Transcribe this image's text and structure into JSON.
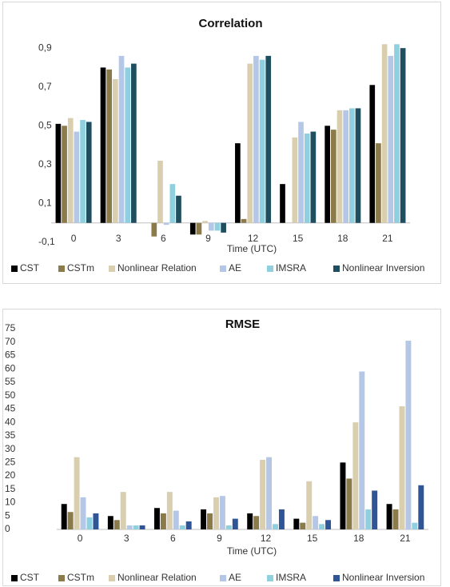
{
  "chart_data": [
    {
      "type": "bar",
      "title": "Correlation",
      "x_label": "Time (UTC)",
      "categories": [
        "0",
        "3",
        "6",
        "9",
        "12",
        "15",
        "18",
        "21"
      ],
      "ylim": [
        -0.1,
        0.95
      ],
      "yticks": [
        {
          "value": -0.1,
          "label": "-0,1"
        },
        {
          "value": 0.1,
          "label": "0,1"
        },
        {
          "value": 0.3,
          "label": "0,3"
        },
        {
          "value": 0.5,
          "label": "0,5"
        },
        {
          "value": 0.7,
          "label": "0,7"
        },
        {
          "value": 0.9,
          "label": "0,9"
        }
      ],
      "legend": "bottom",
      "series": [
        {
          "name": "CST",
          "color": "#000000",
          "values": [
            0.51,
            0.8,
            0,
            -0.06,
            0.41,
            0.2,
            0.5,
            0.71
          ]
        },
        {
          "name": "CSTm",
          "color": "#8b7a4a",
          "values": [
            0.5,
            0.79,
            -0.07,
            -0.06,
            0.02,
            0,
            0.48,
            0.41
          ]
        },
        {
          "name": "Nonlinear Relation",
          "color": "#d9cfae",
          "values": [
            0.54,
            0.74,
            0.32,
            0.01,
            0.82,
            0.44,
            0.58,
            0.92
          ]
        },
        {
          "name": "AE",
          "color": "#b4c7e7",
          "values": [
            0.47,
            0.86,
            -0.01,
            -0.04,
            0.86,
            0.52,
            0.58,
            0.86
          ]
        },
        {
          "name": "IMSRA",
          "color": "#8fd0e0",
          "values": [
            0.53,
            0.8,
            0.2,
            -0.04,
            0.84,
            0.46,
            0.59,
            0.92
          ]
        },
        {
          "name": "Nonlinear Inversion",
          "color": "#1f4e5f",
          "values": [
            0.52,
            0.82,
            0.14,
            -0.05,
            0.86,
            0.47,
            0.59,
            0.9
          ]
        }
      ]
    },
    {
      "type": "bar",
      "title": "RMSE",
      "x_label": "Time (UTC)",
      "categories": [
        "0",
        "3",
        "6",
        "9",
        "12",
        "15",
        "18",
        "21"
      ],
      "ylim": [
        0,
        75
      ],
      "yticks": [
        0,
        5,
        10,
        15,
        20,
        25,
        30,
        35,
        40,
        45,
        50,
        55,
        60,
        65,
        70,
        75
      ],
      "legend": "bottom",
      "series": [
        {
          "name": "CST",
          "color": "#000000",
          "values": [
            9.5,
            5,
            8,
            7.5,
            6,
            4,
            25,
            9.5
          ]
        },
        {
          "name": "CSTm",
          "color": "#8b7a4a",
          "values": [
            6.5,
            3.5,
            6,
            6,
            5,
            2.5,
            19,
            7.5
          ]
        },
        {
          "name": "Nonlinear Relation",
          "color": "#d9cfae",
          "values": [
            27,
            14,
            14,
            12,
            26,
            18,
            40,
            46
          ]
        },
        {
          "name": "AE",
          "color": "#b4c7e7",
          "values": [
            12,
            1.5,
            7,
            12.5,
            27,
            5,
            59,
            70.5
          ]
        },
        {
          "name": "IMSRA",
          "color": "#8fd0e0",
          "values": [
            4.5,
            1.5,
            1.5,
            1.5,
            2,
            2,
            7.5,
            2.5
          ]
        },
        {
          "name": "Nonlinear Inversion",
          "color": "#2f5597",
          "values": [
            6,
            1.5,
            3,
            4,
            7.5,
            3.5,
            14.5,
            16.5
          ]
        }
      ]
    }
  ]
}
